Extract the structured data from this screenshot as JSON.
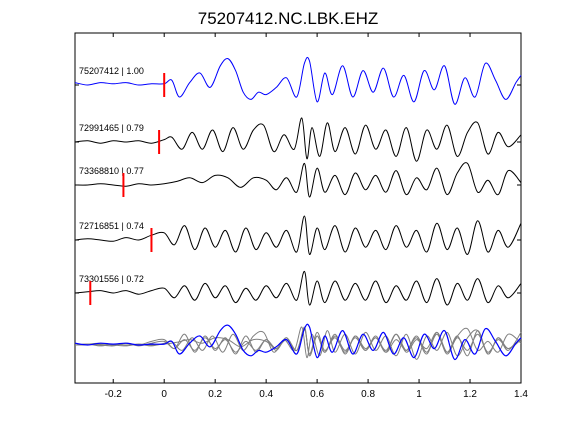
{
  "chart_data": {
    "type": "line",
    "title": "75207412.NC.LBK.EHZ",
    "xlabel": "",
    "ylabel": "",
    "xlim": [
      -0.35,
      1.4
    ],
    "xticks": [
      -0.2,
      0,
      0.2,
      0.4,
      0.6,
      0.8,
      1.0,
      1.2,
      1.4
    ],
    "xtick_labels": [
      "-0.2",
      "0",
      "0.2",
      "0.4",
      "0.6",
      "0.8",
      "1",
      "1.2",
      "1.4"
    ],
    "grid": false,
    "legend": "none",
    "colors": {
      "master": "#0000ff",
      "trace": "#000000",
      "overlay": "#808080",
      "pick": "#ff0000"
    },
    "series": [
      {
        "label": "75207412 | 1.00",
        "color": "#0000ff",
        "pick_time": 0.0,
        "base": 0,
        "x": [
          -0.35,
          -0.3,
          -0.25,
          -0.2,
          -0.15,
          -0.1,
          -0.05,
          0.0,
          0.03,
          0.06,
          0.1,
          0.14,
          0.18,
          0.22,
          0.25,
          0.28,
          0.31,
          0.34,
          0.37,
          0.4,
          0.44,
          0.48,
          0.52,
          0.55,
          0.57,
          0.6,
          0.63,
          0.66,
          0.7,
          0.74,
          0.78,
          0.82,
          0.86,
          0.9,
          0.94,
          0.98,
          1.02,
          1.06,
          1.1,
          1.14,
          1.18,
          1.22,
          1.26,
          1.3,
          1.34,
          1.38,
          1.4
        ],
        "y": [
          0.1,
          0.0,
          0.1,
          0.05,
          0.1,
          0.0,
          0.05,
          0.05,
          0.2,
          -0.5,
          0.1,
          0.5,
          -0.1,
          0.8,
          1.1,
          0.6,
          -0.3,
          -0.6,
          -0.3,
          -0.4,
          -0.1,
          0.3,
          -0.5,
          0.9,
          1.0,
          -0.7,
          0.5,
          -0.4,
          0.8,
          -0.5,
          0.6,
          -0.3,
          0.7,
          -0.5,
          0.4,
          -0.7,
          0.6,
          -0.2,
          0.8,
          -0.8,
          0.3,
          -0.5,
          0.9,
          0.2,
          -0.6,
          0.1,
          0.4
        ]
      },
      {
        "label": "72991465 | 0.79",
        "color": "#000000",
        "pick_time": -0.02,
        "base": 1,
        "x": [
          -0.35,
          -0.3,
          -0.25,
          -0.2,
          -0.15,
          -0.1,
          -0.05,
          0.0,
          0.03,
          0.07,
          0.11,
          0.15,
          0.19,
          0.23,
          0.27,
          0.31,
          0.35,
          0.39,
          0.43,
          0.47,
          0.51,
          0.54,
          0.56,
          0.58,
          0.61,
          0.64,
          0.67,
          0.71,
          0.75,
          0.79,
          0.83,
          0.87,
          0.91,
          0.95,
          0.99,
          1.03,
          1.07,
          1.11,
          1.15,
          1.19,
          1.23,
          1.27,
          1.31,
          1.35,
          1.4
        ],
        "y": [
          0.0,
          0.05,
          -0.05,
          0.05,
          0.0,
          0.05,
          -0.05,
          0.1,
          0.2,
          -0.3,
          0.4,
          -0.3,
          0.5,
          -0.4,
          0.6,
          -0.3,
          0.5,
          0.7,
          -0.4,
          0.3,
          -0.3,
          1.0,
          -0.7,
          0.6,
          -0.6,
          0.8,
          -0.4,
          0.6,
          -0.5,
          0.7,
          -0.3,
          0.5,
          -0.6,
          0.6,
          -0.8,
          0.5,
          -0.3,
          0.7,
          -0.6,
          0.4,
          0.8,
          -0.5,
          0.4,
          -0.2,
          0.3
        ]
      },
      {
        "label": "73368810 | 0.77",
        "color": "#000000",
        "pick_time": -0.16,
        "base": 2,
        "x": [
          -0.35,
          -0.3,
          -0.25,
          -0.2,
          -0.15,
          -0.1,
          -0.05,
          0.0,
          0.05,
          0.1,
          0.15,
          0.2,
          0.25,
          0.3,
          0.35,
          0.4,
          0.44,
          0.48,
          0.52,
          0.55,
          0.57,
          0.6,
          0.63,
          0.67,
          0.71,
          0.75,
          0.79,
          0.83,
          0.87,
          0.91,
          0.95,
          0.99,
          1.03,
          1.07,
          1.11,
          1.15,
          1.19,
          1.23,
          1.27,
          1.31,
          1.35,
          1.4
        ],
        "y": [
          0.0,
          0.0,
          0.05,
          0.0,
          -0.05,
          0.05,
          0.0,
          0.05,
          0.15,
          0.3,
          0.1,
          0.4,
          0.3,
          -0.1,
          0.3,
          0.2,
          -0.2,
          0.3,
          -0.3,
          0.9,
          -0.5,
          0.7,
          -0.3,
          0.4,
          -0.4,
          0.5,
          -0.2,
          0.4,
          -0.3,
          0.6,
          -0.4,
          0.3,
          -0.2,
          0.7,
          -0.4,
          0.5,
          0.9,
          -0.3,
          0.2,
          -0.4,
          0.6,
          0.1
        ]
      },
      {
        "label": "72716851 | 0.74",
        "color": "#000000",
        "pick_time": -0.05,
        "base": 3,
        "x": [
          -0.35,
          -0.3,
          -0.25,
          -0.2,
          -0.15,
          -0.1,
          -0.05,
          0.0,
          0.04,
          0.08,
          0.12,
          0.16,
          0.2,
          0.24,
          0.28,
          0.32,
          0.36,
          0.4,
          0.44,
          0.48,
          0.52,
          0.55,
          0.57,
          0.6,
          0.63,
          0.67,
          0.71,
          0.75,
          0.79,
          0.83,
          0.87,
          0.91,
          0.95,
          0.99,
          1.03,
          1.07,
          1.11,
          1.15,
          1.19,
          1.23,
          1.27,
          1.31,
          1.35,
          1.4
        ],
        "y": [
          0.0,
          0.05,
          0.0,
          -0.05,
          0.1,
          0.0,
          0.2,
          0.3,
          -0.2,
          0.6,
          -0.4,
          0.5,
          -0.3,
          0.4,
          -0.5,
          0.5,
          -0.4,
          0.3,
          -0.3,
          0.4,
          -0.5,
          1.0,
          -0.6,
          0.5,
          -0.4,
          0.6,
          -0.5,
          0.5,
          -0.3,
          0.4,
          -0.4,
          0.6,
          -0.3,
          0.4,
          -0.5,
          0.7,
          -0.4,
          0.5,
          -0.6,
          0.8,
          -0.5,
          0.4,
          -0.3,
          0.7
        ]
      },
      {
        "label": "73301556 | 0.72",
        "color": "#000000",
        "pick_time": -0.29,
        "base": 4,
        "x": [
          -0.35,
          -0.3,
          -0.25,
          -0.2,
          -0.15,
          -0.1,
          -0.05,
          0.0,
          0.04,
          0.08,
          0.12,
          0.16,
          0.2,
          0.24,
          0.28,
          0.32,
          0.36,
          0.4,
          0.44,
          0.48,
          0.52,
          0.55,
          0.57,
          0.6,
          0.63,
          0.67,
          0.71,
          0.75,
          0.79,
          0.83,
          0.87,
          0.91,
          0.95,
          0.99,
          1.03,
          1.07,
          1.11,
          1.15,
          1.19,
          1.23,
          1.27,
          1.31,
          1.35,
          1.4
        ],
        "y": [
          0.0,
          0.05,
          0.1,
          0.0,
          0.1,
          -0.05,
          0.1,
          0.2,
          -0.2,
          0.3,
          -0.3,
          0.4,
          -0.2,
          0.3,
          -0.4,
          0.2,
          -0.3,
          0.3,
          -0.2,
          0.4,
          -0.3,
          0.9,
          -0.5,
          0.5,
          -0.4,
          0.5,
          -0.3,
          0.4,
          -0.3,
          0.5,
          -0.4,
          0.3,
          -0.3,
          0.5,
          -0.4,
          0.6,
          -0.5,
          0.4,
          -0.3,
          0.6,
          -0.4,
          0.3,
          -0.2,
          0.4
        ]
      }
    ]
  }
}
